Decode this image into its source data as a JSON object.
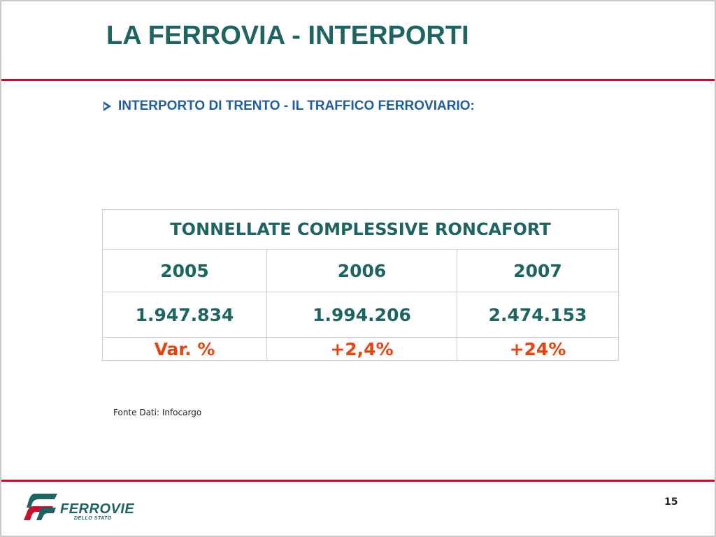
{
  "slide": {
    "title": "LA FERROVIA - INTERPORTI",
    "subtitle": "INTERPORTO DI TRENTO - IL TRAFFICO FERROVIARIO:",
    "page_number": "15",
    "source": "Fonte Dati: Infocargo"
  },
  "table": {
    "header": "TONNELLATE COMPLESSIVE RONCAFORT",
    "years": [
      "2005",
      "2006",
      "2007"
    ],
    "values": [
      "1.947.834",
      "1.994.206",
      "2.474.153"
    ],
    "variation": [
      "Var. %",
      "+2,4%",
      "+24%"
    ]
  },
  "logo": {
    "name": "FERROVIE",
    "sub": "DELLO STATO"
  },
  "colors": {
    "title": "#1e6462",
    "subtitle": "#1f5fa0",
    "rule": "#c8102e",
    "variation": "#e8430e"
  }
}
